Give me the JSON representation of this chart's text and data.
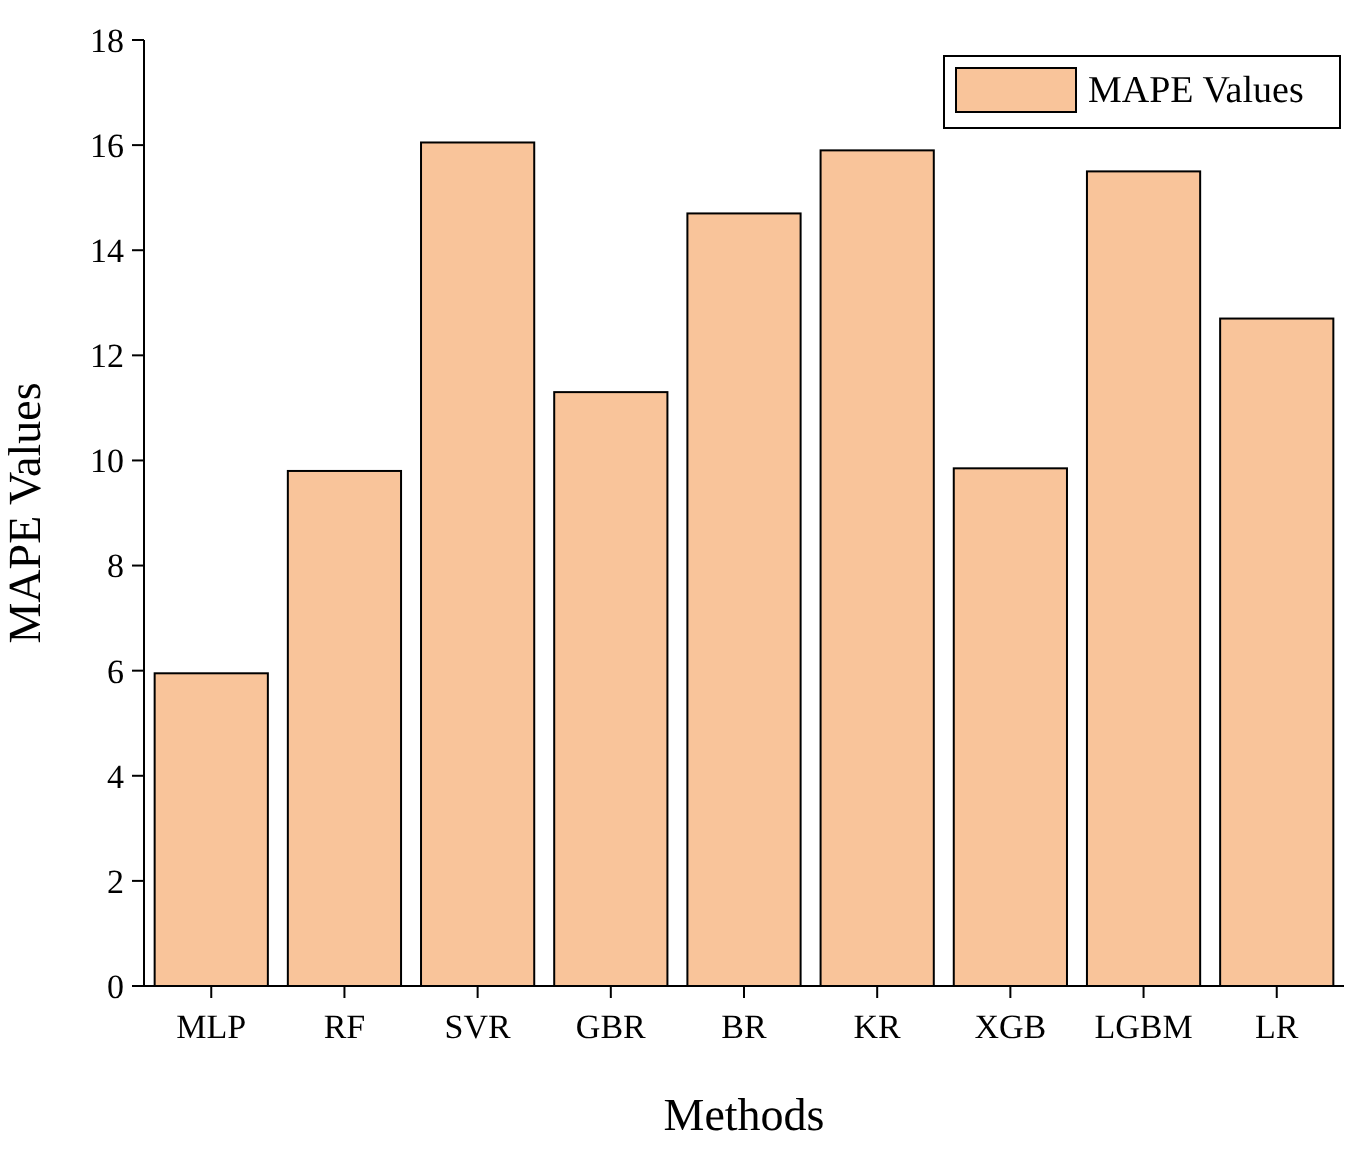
{
  "chart_data": {
    "type": "bar",
    "xlabel": "Methods",
    "ylabel": "MAPE Values",
    "categories": [
      "MLP",
      "RF",
      "SVR",
      "GBR",
      "BR",
      "KR",
      "XGB",
      "LGBM",
      "LR"
    ],
    "series": [
      {
        "name": "MAPE Values",
        "color": "#f9c49a",
        "values": [
          5.95,
          9.8,
          16.05,
          11.3,
          14.7,
          15.9,
          9.85,
          15.5,
          12.7
        ]
      }
    ],
    "ylim": [
      0,
      18
    ],
    "yticks": [
      0,
      2,
      4,
      6,
      8,
      10,
      12,
      14,
      16,
      18
    ],
    "legend": "top right",
    "grid": false
  }
}
